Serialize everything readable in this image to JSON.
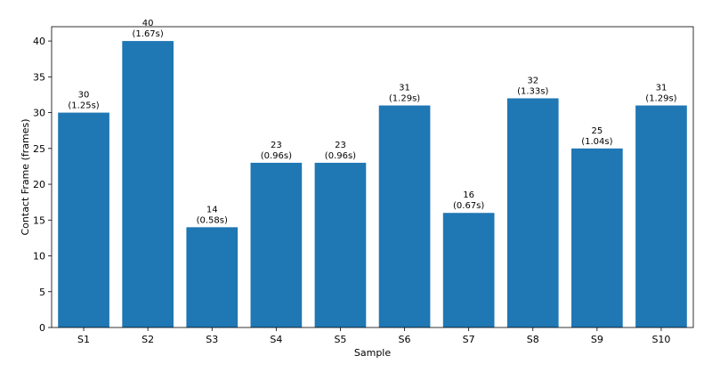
{
  "chart_data": {
    "type": "bar",
    "title": "",
    "xlabel": "Sample",
    "ylabel": "Contact Frame (frames)",
    "ylim": [
      0,
      42
    ],
    "yticks": [
      0,
      5,
      10,
      15,
      20,
      25,
      30,
      35,
      40
    ],
    "grid": false,
    "bar_color": "#1f77b4",
    "categories": [
      "S1",
      "S2",
      "S3",
      "S4",
      "S5",
      "S6",
      "S7",
      "S8",
      "S9",
      "S10"
    ],
    "values": [
      30,
      40,
      14,
      23,
      23,
      31,
      16,
      32,
      25,
      31
    ],
    "data_labels": [
      {
        "frames": "30",
        "seconds": "(1.25s)"
      },
      {
        "frames": "40",
        "seconds": "(1.67s)"
      },
      {
        "frames": "14",
        "seconds": "(0.58s)"
      },
      {
        "frames": "23",
        "seconds": "(0.96s)"
      },
      {
        "frames": "23",
        "seconds": "(0.96s)"
      },
      {
        "frames": "31",
        "seconds": "(1.29s)"
      },
      {
        "frames": "16",
        "seconds": "(0.67s)"
      },
      {
        "frames": "32",
        "seconds": "(1.33s)"
      },
      {
        "frames": "25",
        "seconds": "(1.04s)"
      },
      {
        "frames": "31",
        "seconds": "(1.29s)"
      }
    ]
  }
}
